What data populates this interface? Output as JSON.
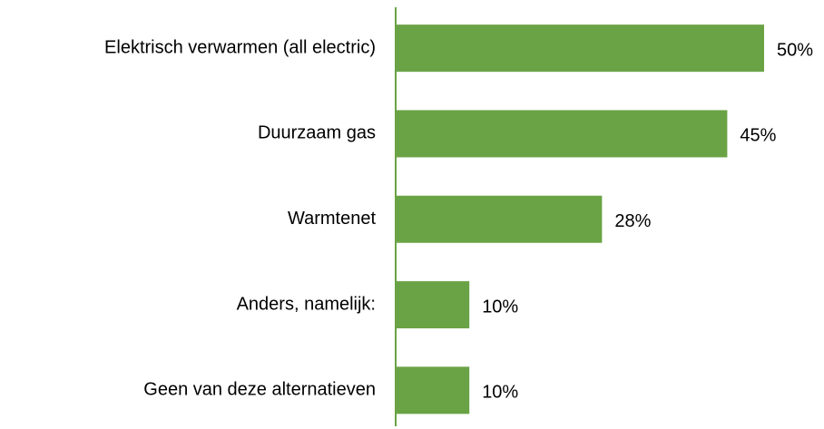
{
  "chart_data": {
    "type": "hbar",
    "categories": [
      "Elektrisch verwarmen (all electric)",
      "Duurzaam gas",
      "Warmtenet",
      "Anders, namelijk:",
      "Geen van deze alternatieven"
    ],
    "values": [
      50,
      45,
      28,
      10,
      10
    ],
    "value_labels": [
      "50%",
      "45%",
      "28%",
      "10%",
      "10%"
    ],
    "color": "#6aa345"
  }
}
